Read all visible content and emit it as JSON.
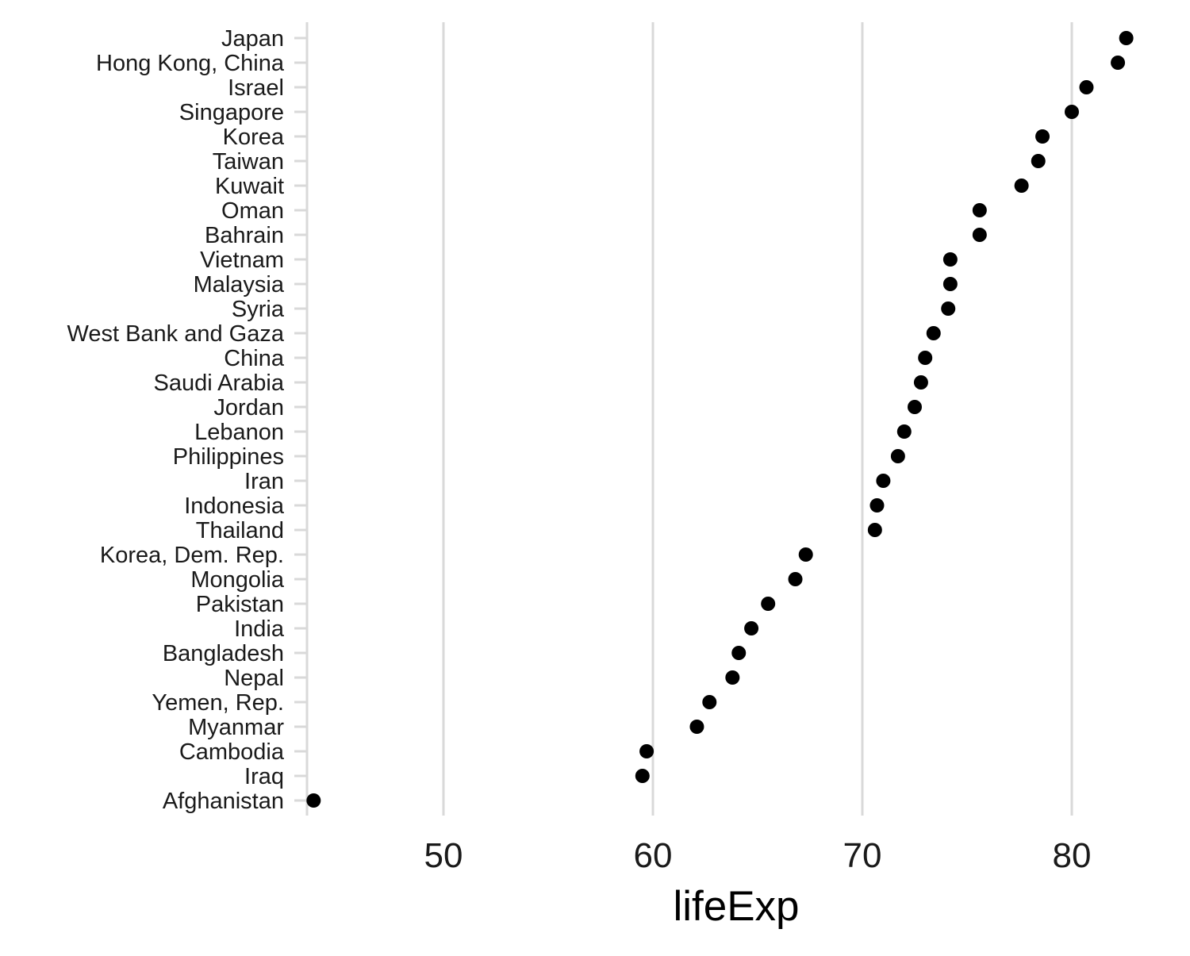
{
  "chart_data": {
    "type": "scatter",
    "title": "",
    "xlabel": "lifeExp",
    "ylabel": "",
    "xlim": [
      43.5,
      84.0
    ],
    "x_ticks": [
      50,
      60,
      70,
      80
    ],
    "x_tick_labels": [
      "50",
      "60",
      "70",
      "80"
    ],
    "grid": "vertical",
    "point_color": "#000000",
    "grid_color": "#d9d9d9",
    "categories": [
      "Japan",
      "Hong Kong, China",
      "Israel",
      "Singapore",
      "Korea",
      "Taiwan",
      "Kuwait",
      "Oman",
      "Bahrain",
      "Vietnam",
      "Malaysia",
      "Syria",
      "West Bank and Gaza",
      "China",
      "Saudi Arabia",
      "Jordan",
      "Lebanon",
      "Philippines",
      "Iran",
      "Indonesia",
      "Thailand",
      "Korea, Dem. Rep.",
      "Mongolia",
      "Pakistan",
      "India",
      "Bangladesh",
      "Nepal",
      "Yemen, Rep.",
      "Myanmar",
      "Cambodia",
      "Iraq",
      "Afghanistan"
    ],
    "values": [
      82.6,
      82.2,
      80.7,
      80.0,
      78.6,
      78.4,
      77.6,
      75.6,
      75.6,
      74.2,
      74.2,
      74.1,
      73.4,
      73.0,
      72.8,
      72.5,
      72.0,
      71.7,
      71.0,
      70.7,
      70.6,
      67.3,
      66.8,
      65.5,
      64.7,
      64.1,
      63.8,
      62.7,
      62.1,
      59.7,
      59.5,
      43.8
    ]
  }
}
